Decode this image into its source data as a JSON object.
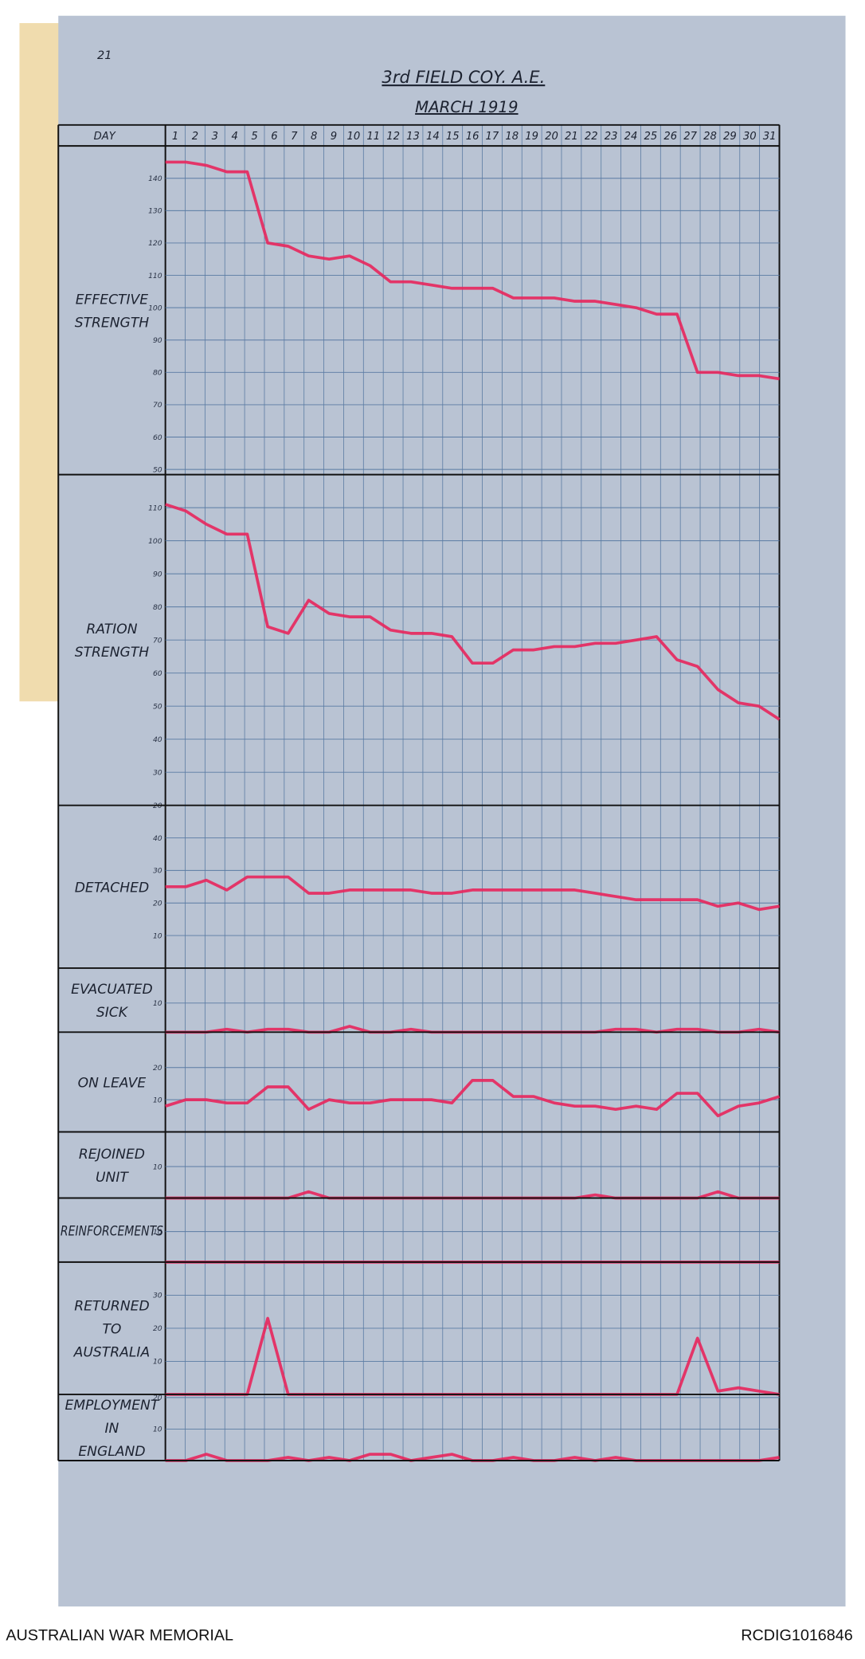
{
  "header": {
    "title": "3rd FIELD COY. A.E.",
    "subtitle": "MARCH 1919",
    "page_number": "21"
  },
  "day_header": {
    "label": "DAY",
    "days": [
      1,
      2,
      3,
      4,
      5,
      6,
      7,
      8,
      9,
      10,
      11,
      12,
      13,
      14,
      15,
      16,
      17,
      18,
      19,
      20,
      21,
      22,
      23,
      24,
      25,
      26,
      27,
      28,
      29,
      30,
      31
    ]
  },
  "chart_data": [
    {
      "type": "line",
      "label": [
        "EFFECTIVE",
        "STRENGTH"
      ],
      "color": "#e8265c",
      "grid": true,
      "ylim": [
        48.4,
        150
      ],
      "yticks": [
        50,
        60,
        70,
        80,
        90,
        100,
        110,
        120,
        130,
        140
      ],
      "values": [
        145,
        145,
        144,
        142,
        142,
        120,
        119,
        116,
        115,
        116,
        113,
        108,
        108,
        107,
        106,
        106,
        106,
        103,
        103,
        103,
        102,
        102,
        101,
        100,
        98,
        98,
        80,
        80,
        79,
        79,
        78
      ]
    },
    {
      "type": "line",
      "label": [
        "RATION",
        "STRENGTH"
      ],
      "color": "#e8265c",
      "grid": true,
      "ylim": [
        20,
        120
      ],
      "yticks": [
        20,
        30,
        40,
        50,
        60,
        70,
        80,
        90,
        100,
        110
      ],
      "values": [
        111,
        109,
        105,
        102,
        102,
        74,
        72,
        82,
        78,
        77,
        77,
        73,
        72,
        72,
        71,
        63,
        63,
        67,
        67,
        68,
        68,
        69,
        69,
        70,
        71,
        64,
        62,
        55,
        51,
        50,
        46
      ]
    },
    {
      "type": "line",
      "label": [
        "DETACHED"
      ],
      "color": "#e8265c",
      "grid": true,
      "ylim": [
        0,
        50
      ],
      "yticks": [
        10,
        20,
        30,
        40
      ],
      "values": [
        25,
        25,
        27,
        24,
        28,
        28,
        28,
        23,
        23,
        24,
        24,
        24,
        24,
        23,
        23,
        24,
        24,
        24,
        24,
        24,
        24,
        23,
        22,
        21,
        21,
        21,
        21,
        19,
        20,
        18,
        19
      ]
    },
    {
      "type": "line",
      "label": [
        "EVACUATED",
        "SICK"
      ],
      "color": "#e8265c",
      "grid": true,
      "ylim": [
        0,
        22
      ],
      "yticks": [
        10
      ],
      "values": [
        0,
        0,
        0,
        1,
        0,
        1,
        1,
        0,
        0,
        2,
        0,
        0,
        1,
        0,
        0,
        0,
        0,
        0,
        0,
        0,
        0,
        0,
        1,
        1,
        0,
        1,
        1,
        0,
        0,
        1,
        0
      ]
    },
    {
      "type": "line",
      "label": [
        "ON LEAVE"
      ],
      "color": "#e8265c",
      "grid": true,
      "ylim": [
        0,
        31
      ],
      "yticks": [
        10,
        20
      ],
      "values": [
        8,
        10,
        10,
        9,
        9,
        14,
        14,
        7,
        10,
        9,
        9,
        10,
        10,
        10,
        9,
        16,
        16,
        11,
        11,
        9,
        8,
        8,
        7,
        8,
        7,
        12,
        12,
        5,
        8,
        9,
        11
      ]
    },
    {
      "type": "line",
      "label": [
        "REJOINED",
        "UNIT"
      ],
      "color": "#e8265c",
      "grid": true,
      "ylim": [
        0,
        21
      ],
      "yticks": [
        10
      ],
      "values": [
        0,
        0,
        0,
        0,
        0,
        0,
        0,
        2,
        0,
        0,
        0,
        0,
        0,
        0,
        0,
        0,
        0,
        0,
        0,
        0,
        0,
        1,
        0,
        0,
        0,
        0,
        0,
        2,
        0,
        0,
        0
      ]
    },
    {
      "type": "line",
      "label": [
        "REINFORCEMENTS"
      ],
      "color": "#e8265c",
      "grid": true,
      "ylim": [
        0,
        21
      ],
      "yticks": [
        10
      ],
      "values": [
        0,
        0,
        0,
        0,
        0,
        0,
        0,
        0,
        0,
        0,
        0,
        0,
        0,
        0,
        0,
        0,
        0,
        0,
        0,
        0,
        0,
        0,
        0,
        0,
        0,
        0,
        0,
        0,
        0,
        0,
        0
      ]
    },
    {
      "type": "line",
      "label": [
        "RETURNED",
        "TO",
        "AUSTRALIA"
      ],
      "color": "#e8265c",
      "grid": true,
      "ylim": [
        0,
        40
      ],
      "yticks": [
        10,
        20,
        30
      ],
      "values": [
        0,
        0,
        0,
        0,
        0,
        23,
        0,
        0,
        0,
        0,
        0,
        0,
        0,
        0,
        0,
        0,
        0,
        0,
        0,
        0,
        0,
        0,
        0,
        0,
        0,
        0,
        17,
        1,
        2,
        1,
        0
      ]
    },
    {
      "type": "line",
      "label": [
        "EMPLOYMENT",
        "IN",
        "ENGLAND"
      ],
      "color": "#e8265c",
      "grid": true,
      "ylim": [
        0,
        21
      ],
      "yticks": [
        10,
        20
      ],
      "values": [
        0,
        0,
        2,
        0,
        0,
        0,
        1,
        0,
        1,
        0,
        2,
        2,
        0,
        1,
        2,
        0,
        0,
        1,
        0,
        0,
        1,
        0,
        1,
        0,
        0,
        0,
        0,
        0,
        0,
        0,
        1
      ]
    }
  ],
  "footer": {
    "left": "AUSTRALIAN WAR MEMORIAL",
    "right": "RCDIG1016846"
  }
}
